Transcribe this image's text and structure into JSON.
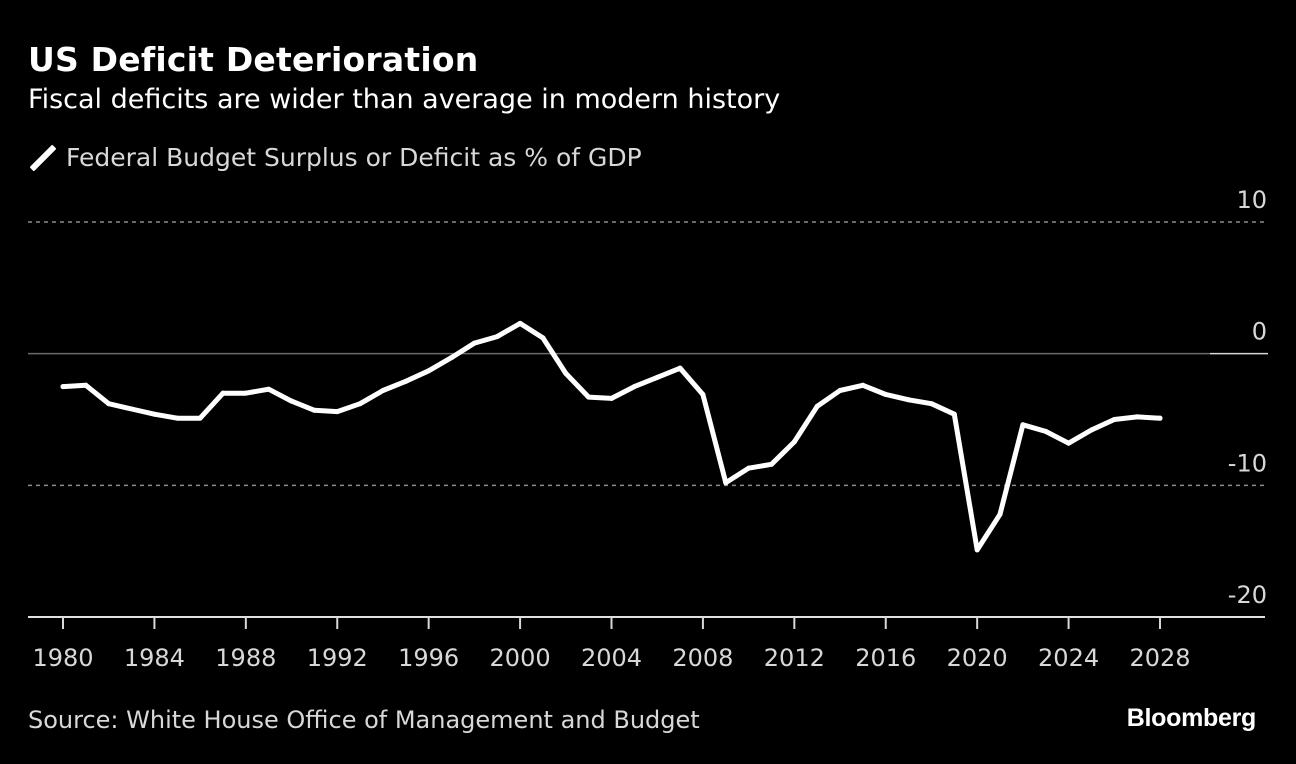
{
  "header": {
    "title": "US Deficit Deterioration",
    "subtitle": "Fiscal deficits are wider than average in modern history"
  },
  "footer": {
    "source": "Source: White House Office of Management and Budget",
    "brand": "Bloomberg"
  },
  "colors": {
    "background": "#000000",
    "line": "#ffffff",
    "grid": "#8a8a8a",
    "text_muted": "#d8d8d8"
  },
  "chart_data": {
    "type": "line",
    "title": "US Deficit Deterioration",
    "subtitle": "Fiscal deficits are wider than average in modern history",
    "xlabel": "",
    "ylabel": "",
    "legend": {
      "entries": [
        "Federal Budget Surplus or Deficit as % of GDP"
      ],
      "placement": "top-left"
    },
    "x_ticks": [
      "1980",
      "1984",
      "1988",
      "1992",
      "1996",
      "2000",
      "2004",
      "2008",
      "2012",
      "2016",
      "2020",
      "2024",
      "2028"
    ],
    "y_ticks": [
      "10",
      "0",
      "-10",
      "-20"
    ],
    "ylim": [
      -20,
      10
    ],
    "xlim": [
      1978.5,
      2033
    ],
    "grid": "horizontal dotted at 10 and -10, solid zero line",
    "y_axis_side": "right",
    "series": [
      {
        "name": "Federal Budget Surplus or Deficit as % of GDP",
        "x": [
          1980,
          1981,
          1982,
          1983,
          1984,
          1985,
          1986,
          1987,
          1988,
          1989,
          1990,
          1991,
          1992,
          1993,
          1994,
          1995,
          1996,
          1997,
          1998,
          1999,
          2000,
          2001,
          2002,
          2003,
          2004,
          2005,
          2006,
          2007,
          2008,
          2009,
          2010,
          2011,
          2012,
          2013,
          2014,
          2015,
          2016,
          2017,
          2018,
          2019,
          2020,
          2021,
          2022,
          2023,
          2024,
          2025,
          2026,
          2027,
          2028
        ],
        "values": [
          -2.5,
          -2.4,
          -3.8,
          -4.2,
          -4.6,
          -4.9,
          -4.9,
          -3.0,
          -3.0,
          -2.7,
          -3.6,
          -4.3,
          -4.4,
          -3.8,
          -2.8,
          -2.1,
          -1.3,
          -0.3,
          0.8,
          1.3,
          2.3,
          1.2,
          -1.5,
          -3.3,
          -3.4,
          -2.5,
          -1.8,
          -1.1,
          -3.1,
          -9.8,
          -8.7,
          -8.4,
          -6.7,
          -4.0,
          -2.8,
          -2.4,
          -3.1,
          -3.5,
          -3.8,
          -4.6,
          -14.9,
          -12.2,
          -5.4,
          -5.9,
          -6.8,
          -5.8,
          -5.0,
          -4.8,
          -4.9
        ]
      }
    ]
  }
}
